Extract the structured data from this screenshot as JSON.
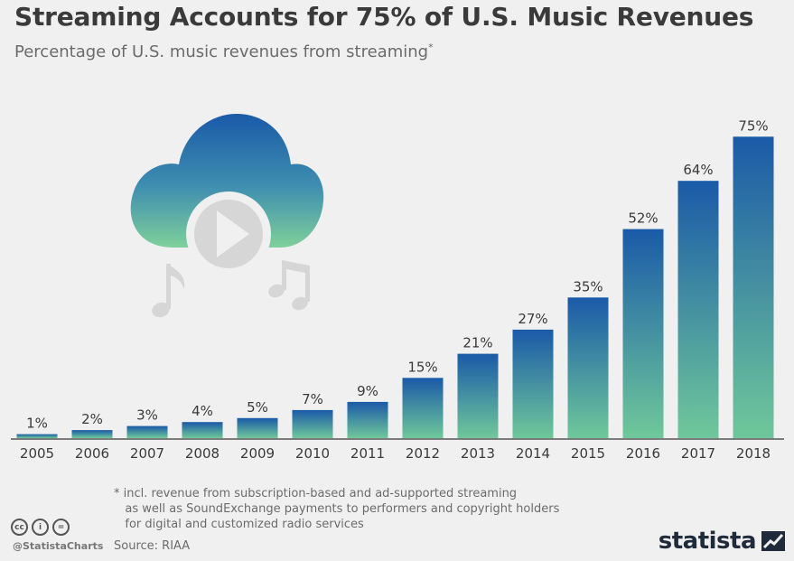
{
  "header": {
    "title": "Streaming Accounts for 75% of U.S. Music Revenues",
    "subtitle": "Percentage of U.S. music revenues from streaming",
    "subtitle_mark": "*"
  },
  "chart_data": {
    "type": "bar",
    "title": "Streaming Accounts for 75% of U.S. Music Revenues",
    "subtitle": "Percentage of U.S. music revenues from streaming*",
    "xlabel": "",
    "ylabel": "",
    "ylim": [
      0,
      80
    ],
    "grid": false,
    "categories": [
      "2005",
      "2006",
      "2007",
      "2008",
      "2009",
      "2010",
      "2011",
      "2012",
      "2013",
      "2014",
      "2015",
      "2016",
      "2017",
      "2018"
    ],
    "values": [
      1,
      2,
      3,
      4,
      5,
      7,
      9,
      15,
      21,
      27,
      35,
      52,
      64,
      75
    ],
    "value_labels": [
      "1%",
      "2%",
      "3%",
      "4%",
      "5%",
      "7%",
      "9%",
      "15%",
      "21%",
      "27%",
      "35%",
      "52%",
      "64%",
      "75%"
    ]
  },
  "colors": {
    "bar_top": "#1a5aa8",
    "bar_bottom": "#6fc89a",
    "text": "#3a3a3a",
    "muted": "#6b6b6b",
    "icon_gray": "#d6d6d6"
  },
  "illustration": {
    "icons": [
      "cloud-icon",
      "play-icon",
      "music-note-icon"
    ]
  },
  "footer": {
    "footnote": "* incl. revenue from subscription-based and ad-supported streaming\n   as well as SoundExchange payments to performers and copyright holders\n   for digital and customized radio services",
    "source": "Source: RIAA",
    "credit": "@StatistaCharts",
    "brand": "statista",
    "cc_labels": [
      "cc",
      "i",
      "="
    ]
  }
}
